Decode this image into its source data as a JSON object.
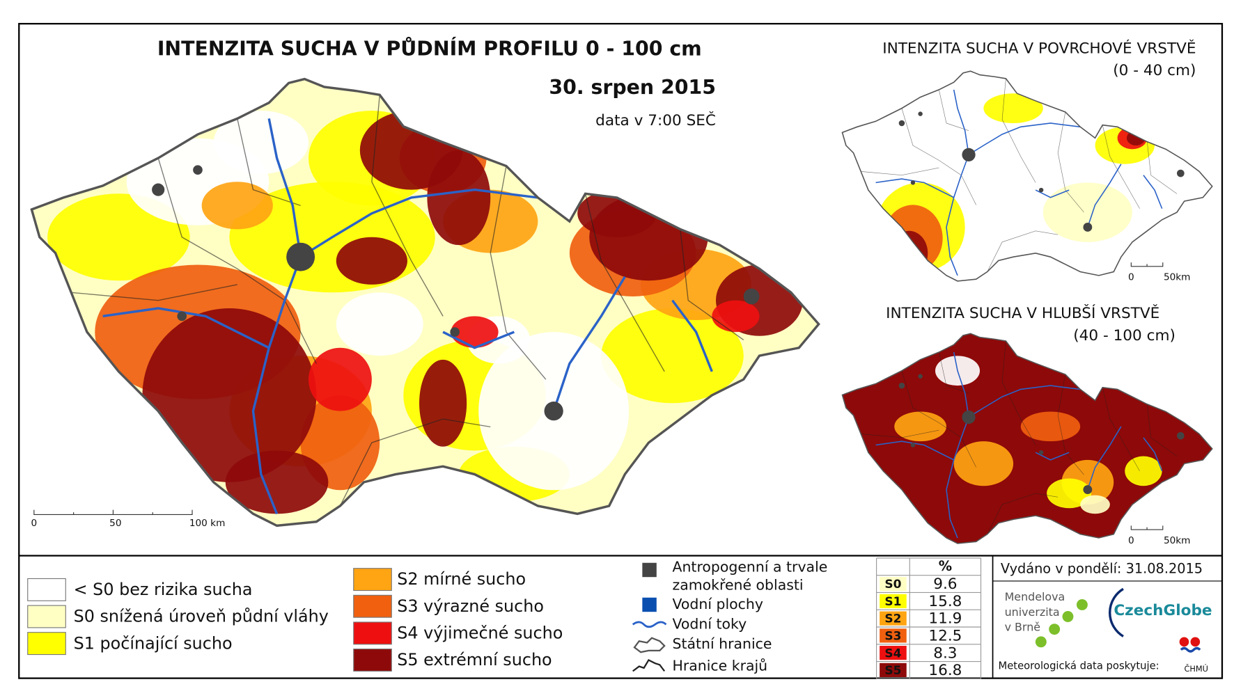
{
  "main_map": {
    "title": "INTENZITA SUCHA V PŮDNÍM PROFILU 0 - 100 cm",
    "date": "30. srpen 2015",
    "time": "data v 7:00 SEČ",
    "scale": [
      "0",
      "50",
      "100 km"
    ]
  },
  "inset_top": {
    "title": "INTENZITA SUCHA V POVRCHOVÉ VRSTVĚ",
    "subtitle": "(0 - 40 cm)",
    "scale": [
      "0",
      "50km"
    ]
  },
  "inset_bottom": {
    "title": "INTENZITA SUCHA V HLUBŠÍ VRSTVĚ",
    "subtitle": "(40 - 100 cm)",
    "scale": [
      "0",
      "50km"
    ]
  },
  "legend": {
    "classes": [
      {
        "label": "< S0 bez rizika sucha",
        "color": "#ffffff"
      },
      {
        "label": "S0 snížená úroveň půdní vláhy",
        "color": "#ffffc4"
      },
      {
        "label": "S1 počínající sucho",
        "color": "#ffff00"
      },
      {
        "label": "S2 mírné sucho",
        "color": "#ffa412"
      },
      {
        "label": "S3 výrazné sucho",
        "color": "#f0600f"
      },
      {
        "label": "S4 výjimečné sucho",
        "color": "#ee1010"
      },
      {
        "label": "S5 extrémní sucho",
        "color": "#8e0a0a"
      }
    ],
    "layers": [
      {
        "label": [
          "Antropogenní a trvale",
          "zamokřené oblasti"
        ],
        "color": "#444444"
      },
      {
        "label": [
          "Vodní plochy"
        ],
        "color": "#0a4fb0"
      },
      {
        "label": [
          "Vodní toky"
        ],
        "color": "#2a62c8"
      },
      {
        "label": [
          "Státní hranice"
        ],
        "color": "#555555"
      },
      {
        "label": [
          "Hranice krajů"
        ],
        "color": "#222222"
      }
    ]
  },
  "table": {
    "header": "%",
    "rows": [
      {
        "class": "S0",
        "percent": 9.6
      },
      {
        "class": "S1",
        "percent": 15.8
      },
      {
        "class": "S2",
        "percent": 11.9
      },
      {
        "class": "S3",
        "percent": 12.5
      },
      {
        "class": "S4",
        "percent": 8.3
      },
      {
        "class": "S5",
        "percent": 16.8
      }
    ]
  },
  "issued": "Vydáno v pondělí: 31.08.2015",
  "logos": {
    "mendel": [
      "Mendelova",
      "univerzita",
      "v Brně"
    ],
    "czechglobe": "CzechGlobe",
    "chmu": "ČHMÚ"
  },
  "credit": "Meteorologická data poskytuje:"
}
